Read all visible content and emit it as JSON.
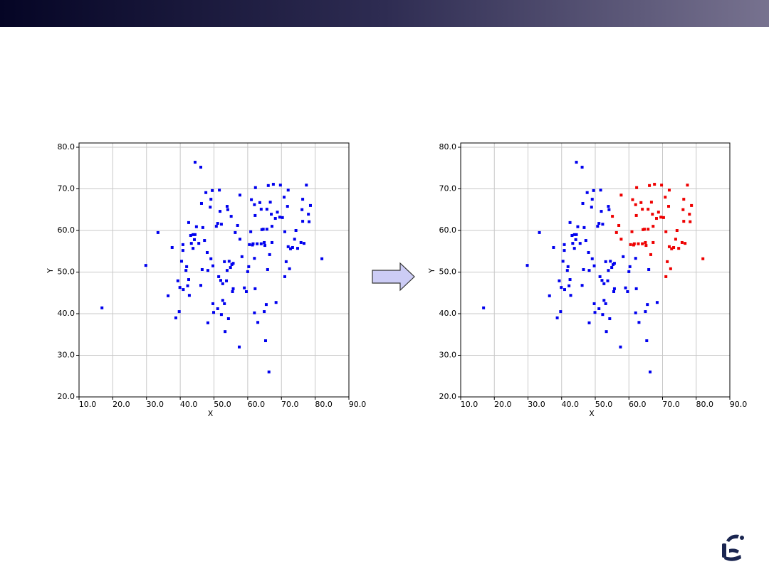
{
  "chart_data": [
    {
      "type": "scatter",
      "xlabel": "X",
      "ylabel": "Y",
      "xlim": [
        10,
        90
      ],
      "ylim": [
        20,
        80
      ],
      "xticks": [
        {
          "value": 10,
          "label": "10.0"
        },
        {
          "value": 20,
          "label": "20.0"
        },
        {
          "value": 30,
          "label": "30.0"
        },
        {
          "value": 40,
          "label": "40.0"
        },
        {
          "value": 50,
          "label": "50.0"
        },
        {
          "value": 60,
          "label": "60.0"
        },
        {
          "value": 70,
          "label": "70.0"
        },
        {
          "value": 80,
          "label": "80.0"
        },
        {
          "value": 90,
          "label": "90.0"
        }
      ],
      "yticks": [
        {
          "value": 20,
          "label": "20.0"
        },
        {
          "value": 30,
          "label": "30.0"
        },
        {
          "value": 40,
          "label": "40.0"
        },
        {
          "value": 50,
          "label": "50.0"
        },
        {
          "value": 60,
          "label": "60.0"
        },
        {
          "value": 70,
          "label": "70.0"
        },
        {
          "value": 80,
          "label": "80.0"
        }
      ],
      "grid": true,
      "series": [
        {
          "color": "#0000ee",
          "x": [
            44.4,
            46.1,
            16.8,
            29.8,
            33.4,
            37.6,
            36.4,
            38.7,
            39.7,
            39.3,
            39.9,
            40.9,
            42.2,
            42.7,
            42.5,
            41.9,
            40.4,
            41.7,
            40.8,
            40.8,
            42.5,
            43.1,
            43.8,
            44.4,
            43.3,
            43.8,
            44.2,
            44.8,
            45.5,
            46.1,
            46.3,
            46.7,
            47.2,
            47.6,
            48.0,
            46.5,
            48.2,
            48.2,
            48.9,
            49.1,
            49.5,
            49.1,
            49.7,
            49.7,
            49.9,
            50.7,
            51.1,
            51.6,
            51.8,
            52.2,
            51.4,
            51.1,
            52.0,
            52.2,
            52.6,
            52.6,
            53.1,
            53.3,
            53.1,
            53.7,
            53.9,
            54.1,
            53.9,
            54.3,
            54.5,
            54.9,
            55.1,
            55.7,
            55.5,
            55.7,
            55.3,
            56.3,
            57.0,
            57.7,
            58.3,
            57.5,
            57.7,
            59.0,
            59.6,
            60.0,
            60.3,
            60.5,
            60.9,
            61.1,
            61.4,
            61.6,
            62.0,
            62.2,
            62.0,
            62.2,
            62.0,
            62.3,
            62.8,
            63.0,
            63.6,
            64.0,
            64.2,
            64.0,
            64.6,
            64.9,
            64.9,
            65.1,
            65.3,
            65.5,
            65.7,
            65.7,
            66.1,
            65.9,
            66.3,
            66.7,
            66.5,
            67.2,
            67.0,
            67.2,
            67.6,
            68.2,
            68.4,
            68.8,
            69.7,
            69.5,
            70.3,
            70.8,
            71.0,
            71.0,
            71.4,
            71.8,
            72.0,
            72.0,
            72.4,
            72.7,
            73.3,
            73.9,
            74.3,
            74.8,
            75.8,
            76.1,
            76.3,
            76.7,
            76.3,
            77.4,
            78.0,
            78.2,
            78.6,
            82.0
          ],
          "values": [
            76.4,
            75.2,
            41.4,
            51.6,
            59.5,
            55.9,
            44.3,
            39.0,
            40.5,
            47.9,
            46.3,
            45.8,
            46.7,
            44.4,
            48.2,
            51.3,
            52.6,
            50.4,
            56.6,
            55.2,
            61.9,
            58.8,
            59.0,
            59.0,
            56.9,
            55.7,
            57.8,
            60.9,
            56.9,
            46.8,
            66.5,
            60.7,
            57.6,
            69.1,
            54.7,
            50.6,
            50.4,
            37.8,
            65.6,
            67.5,
            69.6,
            53.2,
            51.5,
            42.4,
            40.3,
            61.0,
            61.7,
            69.7,
            64.6,
            61.5,
            48.9,
            41.2,
            48.0,
            39.8,
            47.2,
            43.2,
            52.5,
            35.7,
            42.4,
            47.9,
            65.8,
            65.0,
            50.4,
            38.8,
            52.6,
            51.1,
            63.4,
            52.1,
            45.3,
            46.0,
            51.8,
            59.5,
            61.2,
            68.5,
            53.7,
            32.0,
            57.9,
            46.2,
            45.3,
            50.1,
            51.3,
            56.6,
            59.7,
            67.4,
            56.5,
            56.8,
            66.2,
            63.6,
            53.3,
            46.0,
            40.2,
            70.3,
            56.8,
            37.9,
            66.7,
            65.1,
            60.2,
            56.8,
            60.3,
            57.1,
            40.5,
            56.4,
            33.5,
            42.2,
            65.1,
            60.3,
            70.8,
            50.6,
            26.0,
            66.8,
            54.2,
            57.1,
            63.9,
            61.0,
            71.1,
            62.9,
            42.7,
            64.4,
            70.9,
            63.2,
            63.1,
            68.0,
            59.7,
            48.9,
            52.5,
            65.8,
            69.7,
            56.1,
            50.8,
            55.6,
            55.9,
            57.9,
            60.0,
            55.7,
            57.1,
            65.0,
            67.5,
            56.9,
            62.2,
            70.9,
            63.9,
            62.1,
            66.0,
            53.2
          ]
        }
      ]
    },
    {
      "type": "scatter",
      "xlabel": "X",
      "ylabel": "Y",
      "xlim": [
        10,
        90
      ],
      "ylim": [
        20,
        80
      ],
      "xticks": [
        {
          "value": 10,
          "label": "10.0"
        },
        {
          "value": 20,
          "label": "20.0"
        },
        {
          "value": 30,
          "label": "30.0"
        },
        {
          "value": 40,
          "label": "40.0"
        },
        {
          "value": 50,
          "label": "50.0"
        },
        {
          "value": 60,
          "label": "60.0"
        },
        {
          "value": 70,
          "label": "70.0"
        },
        {
          "value": 80,
          "label": "80.0"
        },
        {
          "value": 90,
          "label": "90.0"
        }
      ],
      "yticks": [
        {
          "value": 20,
          "label": "20.0"
        },
        {
          "value": 30,
          "label": "30.0"
        },
        {
          "value": 40,
          "label": "40.0"
        },
        {
          "value": 50,
          "label": "50.0"
        },
        {
          "value": 60,
          "label": "60.0"
        },
        {
          "value": 70,
          "label": "70.0"
        },
        {
          "value": 80,
          "label": "80.0"
        }
      ],
      "grid": true,
      "series": [
        {
          "color": "#0000ee",
          "x": [
            44.4,
            46.1,
            16.8,
            29.8,
            33.4,
            37.6,
            36.4,
            38.7,
            39.7,
            39.3,
            39.9,
            40.9,
            42.2,
            42.7,
            42.5,
            41.9,
            40.4,
            41.7,
            40.8,
            40.8,
            42.5,
            43.1,
            43.8,
            44.4,
            43.3,
            43.8,
            44.2,
            44.8,
            45.5,
            46.1,
            46.3,
            46.7,
            47.2,
            47.6,
            48.0,
            46.5,
            48.2,
            48.2,
            48.9,
            49.1,
            49.5,
            49.1,
            49.7,
            49.7,
            49.9,
            50.7,
            51.1,
            51.6,
            51.8,
            52.2,
            51.4,
            51.1,
            52.0,
            52.2,
            52.6,
            52.6,
            53.1,
            53.3,
            53.1,
            53.7,
            53.9,
            54.1,
            53.9,
            54.3,
            54.5,
            54.9,
            55.7,
            55.5,
            55.7,
            55.3,
            58.3,
            57.5,
            59.0,
            59.6,
            60.0,
            60.3,
            62.0,
            62.2,
            62.0,
            63.0,
            64.9,
            65.3,
            65.5,
            65.9,
            66.3,
            68.4
          ],
          "values": [
            76.4,
            75.2,
            41.4,
            51.6,
            59.5,
            55.9,
            44.3,
            39.0,
            40.5,
            47.9,
            46.3,
            45.8,
            46.7,
            44.4,
            48.2,
            51.3,
            52.6,
            50.4,
            56.6,
            55.2,
            61.9,
            58.8,
            59.0,
            59.0,
            56.9,
            55.7,
            57.8,
            60.9,
            56.9,
            46.8,
            66.5,
            60.7,
            57.6,
            69.1,
            54.7,
            50.6,
            50.4,
            37.8,
            65.6,
            67.5,
            69.6,
            53.2,
            51.5,
            42.4,
            40.3,
            61.0,
            61.7,
            69.7,
            64.6,
            61.5,
            48.9,
            41.2,
            48.0,
            39.8,
            47.2,
            43.2,
            52.5,
            35.7,
            42.4,
            47.9,
            65.8,
            65.0,
            50.4,
            38.8,
            52.6,
            51.1,
            52.1,
            45.3,
            46.0,
            51.8,
            53.7,
            32.0,
            46.2,
            45.3,
            50.1,
            51.3,
            53.3,
            46.0,
            40.2,
            37.9,
            40.5,
            33.5,
            42.2,
            50.6,
            26.0,
            42.7
          ]
        },
        {
          "color": "#ee0000",
          "x": [
            55.1,
            56.3,
            57.0,
            57.7,
            57.7,
            60.5,
            60.9,
            61.1,
            61.4,
            61.6,
            62.0,
            62.2,
            62.3,
            62.8,
            63.6,
            64.0,
            64.2,
            64.0,
            64.6,
            64.9,
            65.1,
            65.7,
            65.7,
            66.1,
            66.7,
            66.5,
            67.2,
            67.0,
            67.2,
            67.6,
            68.2,
            68.8,
            69.7,
            69.5,
            70.3,
            70.8,
            71.0,
            71.0,
            71.4,
            71.8,
            72.0,
            72.0,
            72.4,
            72.7,
            73.3,
            73.9,
            74.3,
            74.8,
            75.8,
            76.1,
            76.3,
            76.7,
            76.3,
            77.4,
            78.0,
            78.2,
            78.6,
            82.0
          ],
          "values": [
            63.4,
            59.5,
            61.2,
            68.5,
            57.9,
            56.6,
            59.7,
            67.4,
            56.5,
            56.8,
            66.2,
            63.6,
            70.3,
            56.8,
            66.7,
            65.1,
            60.2,
            56.8,
            60.3,
            57.1,
            56.4,
            65.1,
            60.3,
            70.8,
            66.8,
            54.2,
            57.1,
            63.9,
            61.0,
            71.1,
            62.9,
            64.4,
            70.9,
            63.2,
            63.1,
            68.0,
            59.7,
            48.9,
            52.5,
            65.8,
            69.7,
            56.1,
            50.8,
            55.6,
            55.9,
            57.9,
            60.0,
            55.7,
            57.1,
            65.0,
            67.5,
            56.9,
            62.2,
            70.9,
            63.9,
            62.1,
            66.0,
            53.2
          ]
        }
      ]
    }
  ]
}
